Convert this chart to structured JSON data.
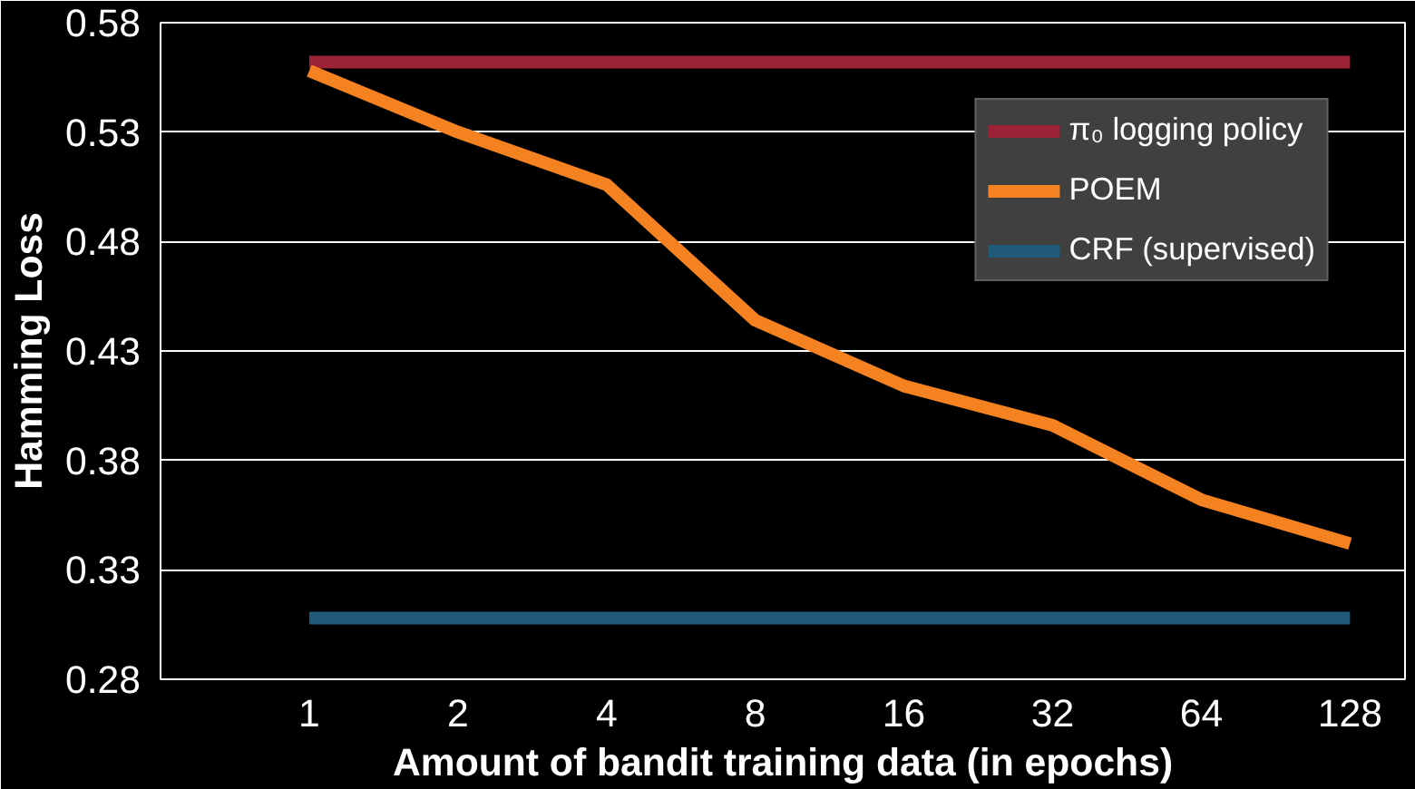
{
  "chart_data": {
    "type": "line",
    "xlabel": "Amount of bandit training data (in epochs)",
    "ylabel": "Hamming Loss",
    "categories": [
      "1",
      "2",
      "4",
      "8",
      "16",
      "32",
      "64",
      "128"
    ],
    "series": [
      {
        "name": "π₀ logging policy",
        "color": "#9b2335",
        "values": [
          0.562,
          0.562,
          0.562,
          0.562,
          0.562,
          0.562,
          0.562,
          0.562
        ]
      },
      {
        "name": "POEM",
        "color": "#f58220",
        "values": [
          0.558,
          0.53,
          0.506,
          0.444,
          0.414,
          0.396,
          0.362,
          0.342
        ]
      },
      {
        "name": "CRF (supervised)",
        "color": "#1f5a7a",
        "values": [
          0.308,
          0.308,
          0.308,
          0.308,
          0.308,
          0.308,
          0.308,
          0.308
        ]
      }
    ],
    "ylim": [
      0.28,
      0.58
    ],
    "yticks": [
      0.28,
      0.33,
      0.38,
      0.43,
      0.48,
      0.53,
      0.58
    ],
    "grid": "y",
    "legend": "top right",
    "marker": "none",
    "line_style": "solid"
  }
}
